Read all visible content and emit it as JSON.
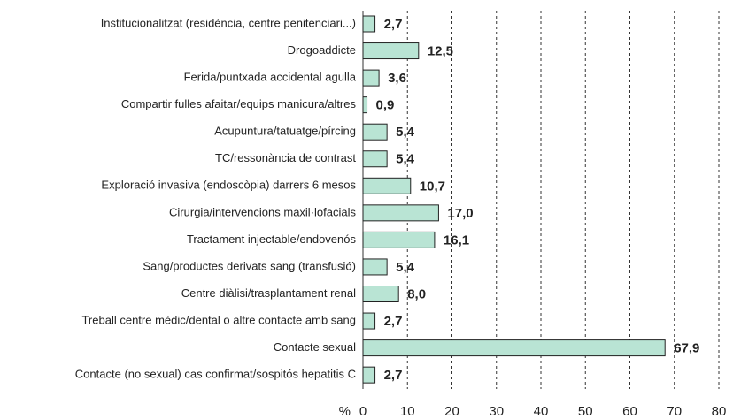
{
  "chart_data": {
    "type": "bar",
    "orientation": "horizontal",
    "categories": [
      "Institucionalitzat (residència, centre penitenciari...)",
      "Drogoaddicte",
      "Ferida/puntxada accidental agulla",
      "Compartir fulles afaitar/equips manicura/altres",
      "Acupuntura/tatuatge/pírcing",
      "TC/ressonància de contrast",
      "Exploració invasiva (endoscòpia) darrers 6 mesos",
      "Cirurgia/intervencions maxil·lofacials",
      "Tractament injectable/endovenós",
      "Sang/productes derivats sang (transfusió)",
      "Centre diàlisi/trasplantament renal",
      "Treball centre mèdic/dental o altre contacte amb sang",
      "Contacte sexual",
      "Contacte (no sexual) cas confirmat/sospitós hepatitis C"
    ],
    "values": [
      2.7,
      12.5,
      3.6,
      0.9,
      5.4,
      5.4,
      10.7,
      17.0,
      16.1,
      5.4,
      8.0,
      2.7,
      67.9,
      2.7
    ],
    "value_labels": [
      "2,7",
      "12,5",
      "3,6",
      "0,9",
      "5,4",
      "5,4",
      "10,7",
      "17,0",
      "16,1",
      "5,4",
      "8,0",
      "2,7",
      "67,9",
      "2,7"
    ],
    "color": "#b9e4d4",
    "x_label": "%",
    "xlim": [
      0,
      80
    ],
    "xticks": [
      0,
      10,
      20,
      30,
      40,
      50,
      60,
      70,
      80
    ],
    "grid": true
  }
}
